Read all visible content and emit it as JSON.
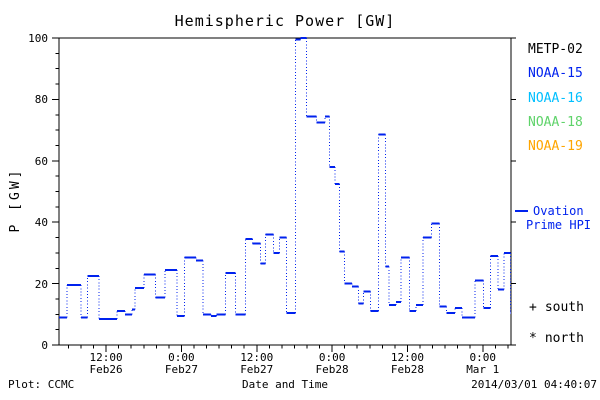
{
  "title": "Hemispheric Power [GW]",
  "y_axis": {
    "label": "P [GW]",
    "min": 0,
    "max": 100,
    "major_tick_step": 20,
    "minor_tick_step": 5,
    "tick_labels": [
      "0",
      "20",
      "40",
      "60",
      "80",
      "100"
    ]
  },
  "x_axis": {
    "label": "Date and Time",
    "span_hours": 72,
    "first_major_tick_hour": 7.5,
    "major_tick_step_hours": 12,
    "minor_tick_step_hours": 2,
    "tick_labels": [
      {
        "time": "12:00",
        "date": "Feb26"
      },
      {
        "time": "0:00",
        "date": "Feb27"
      },
      {
        "time": "12:00",
        "date": "Feb27"
      },
      {
        "time": "0:00",
        "date": "Feb28"
      },
      {
        "time": "12:00",
        "date": "Feb28"
      },
      {
        "time": "0:00",
        "date": "Mar 1"
      }
    ]
  },
  "legend_satellites": [
    {
      "label": "METP-02",
      "color": "#000000"
    },
    {
      "label": "NOAA-15",
      "color": "#0022ee"
    },
    {
      "label": "NOAA-16",
      "color": "#00bfff"
    },
    {
      "label": "NOAA-18",
      "color": "#5fd36a"
    },
    {
      "label": "NOAA-19",
      "color": "#ffa500"
    }
  ],
  "legend_series": {
    "marker": "line-sample",
    "line1": "Ovation",
    "line2": "Prime HPI",
    "color": "#0022ee"
  },
  "hemisphere_markers": [
    {
      "symbol": "+",
      "label": "south"
    },
    {
      "symbol": "*",
      "label": "north"
    }
  ],
  "footer": {
    "left": "Plot: CCMC",
    "right": "2014/03/01 04:40:07"
  },
  "chart_data": {
    "type": "line",
    "style": "step-histogram, solid horizontal steps with dotted vertical connectors",
    "title": "Hemispheric Power [GW]",
    "xlabel": "Date and Time",
    "ylabel": "P [GW]",
    "ylim": [
      0,
      100
    ],
    "xlim_hours": [
      0,
      72
    ],
    "x_start": "2014-02-26 ~04:40",
    "x_end": "2014-03-01 ~04:40",
    "series": [
      {
        "name": "Ovation Prime HPI (NOAA-15)",
        "color": "#0022ee",
        "x_unit": "hours from plot start",
        "y_unit": "GW",
        "points": [
          [
            0,
            9
          ],
          [
            1.3,
            19.5
          ],
          [
            3.5,
            9
          ],
          [
            4.5,
            22.5
          ],
          [
            6.4,
            8.5
          ],
          [
            9.2,
            11
          ],
          [
            10.5,
            10
          ],
          [
            11.6,
            11.5
          ],
          [
            12.1,
            18.5
          ],
          [
            13.5,
            23
          ],
          [
            15.4,
            15.5
          ],
          [
            16.9,
            24.5
          ],
          [
            18.8,
            9.5
          ],
          [
            20,
            28.5
          ],
          [
            21.8,
            27.5
          ],
          [
            22.9,
            10
          ],
          [
            24.2,
            9.5
          ],
          [
            25.1,
            10
          ],
          [
            26.5,
            23.5
          ],
          [
            28.1,
            10
          ],
          [
            29.7,
            34.5
          ],
          [
            30.8,
            33
          ],
          [
            32.1,
            26.5
          ],
          [
            32.9,
            36
          ],
          [
            34.2,
            30
          ],
          [
            35.1,
            35
          ],
          [
            36.2,
            10.5
          ],
          [
            37.7,
            99.5
          ],
          [
            38.5,
            100
          ],
          [
            39.4,
            74.5
          ],
          [
            41,
            72.5
          ],
          [
            42.4,
            74.5
          ],
          [
            43.1,
            58
          ],
          [
            44,
            52.5
          ],
          [
            44.7,
            30.5
          ],
          [
            45.5,
            20
          ],
          [
            46.7,
            19
          ],
          [
            47.7,
            13.5
          ],
          [
            48.5,
            17.5
          ],
          [
            49.6,
            11
          ],
          [
            50.9,
            68.5
          ],
          [
            52,
            25.5
          ],
          [
            52.6,
            13
          ],
          [
            53.7,
            14
          ],
          [
            54.5,
            28.5
          ],
          [
            55.8,
            11
          ],
          [
            56.9,
            13
          ],
          [
            58,
            35
          ],
          [
            59.3,
            39.5
          ],
          [
            60.6,
            12.5
          ],
          [
            61.7,
            10.5
          ],
          [
            63.1,
            12
          ],
          [
            64.2,
            9
          ],
          [
            66.3,
            21
          ],
          [
            67.6,
            12
          ],
          [
            68.7,
            29
          ],
          [
            69.9,
            18
          ],
          [
            70.9,
            30
          ],
          [
            71.9,
            10.5
          ]
        ]
      }
    ]
  }
}
